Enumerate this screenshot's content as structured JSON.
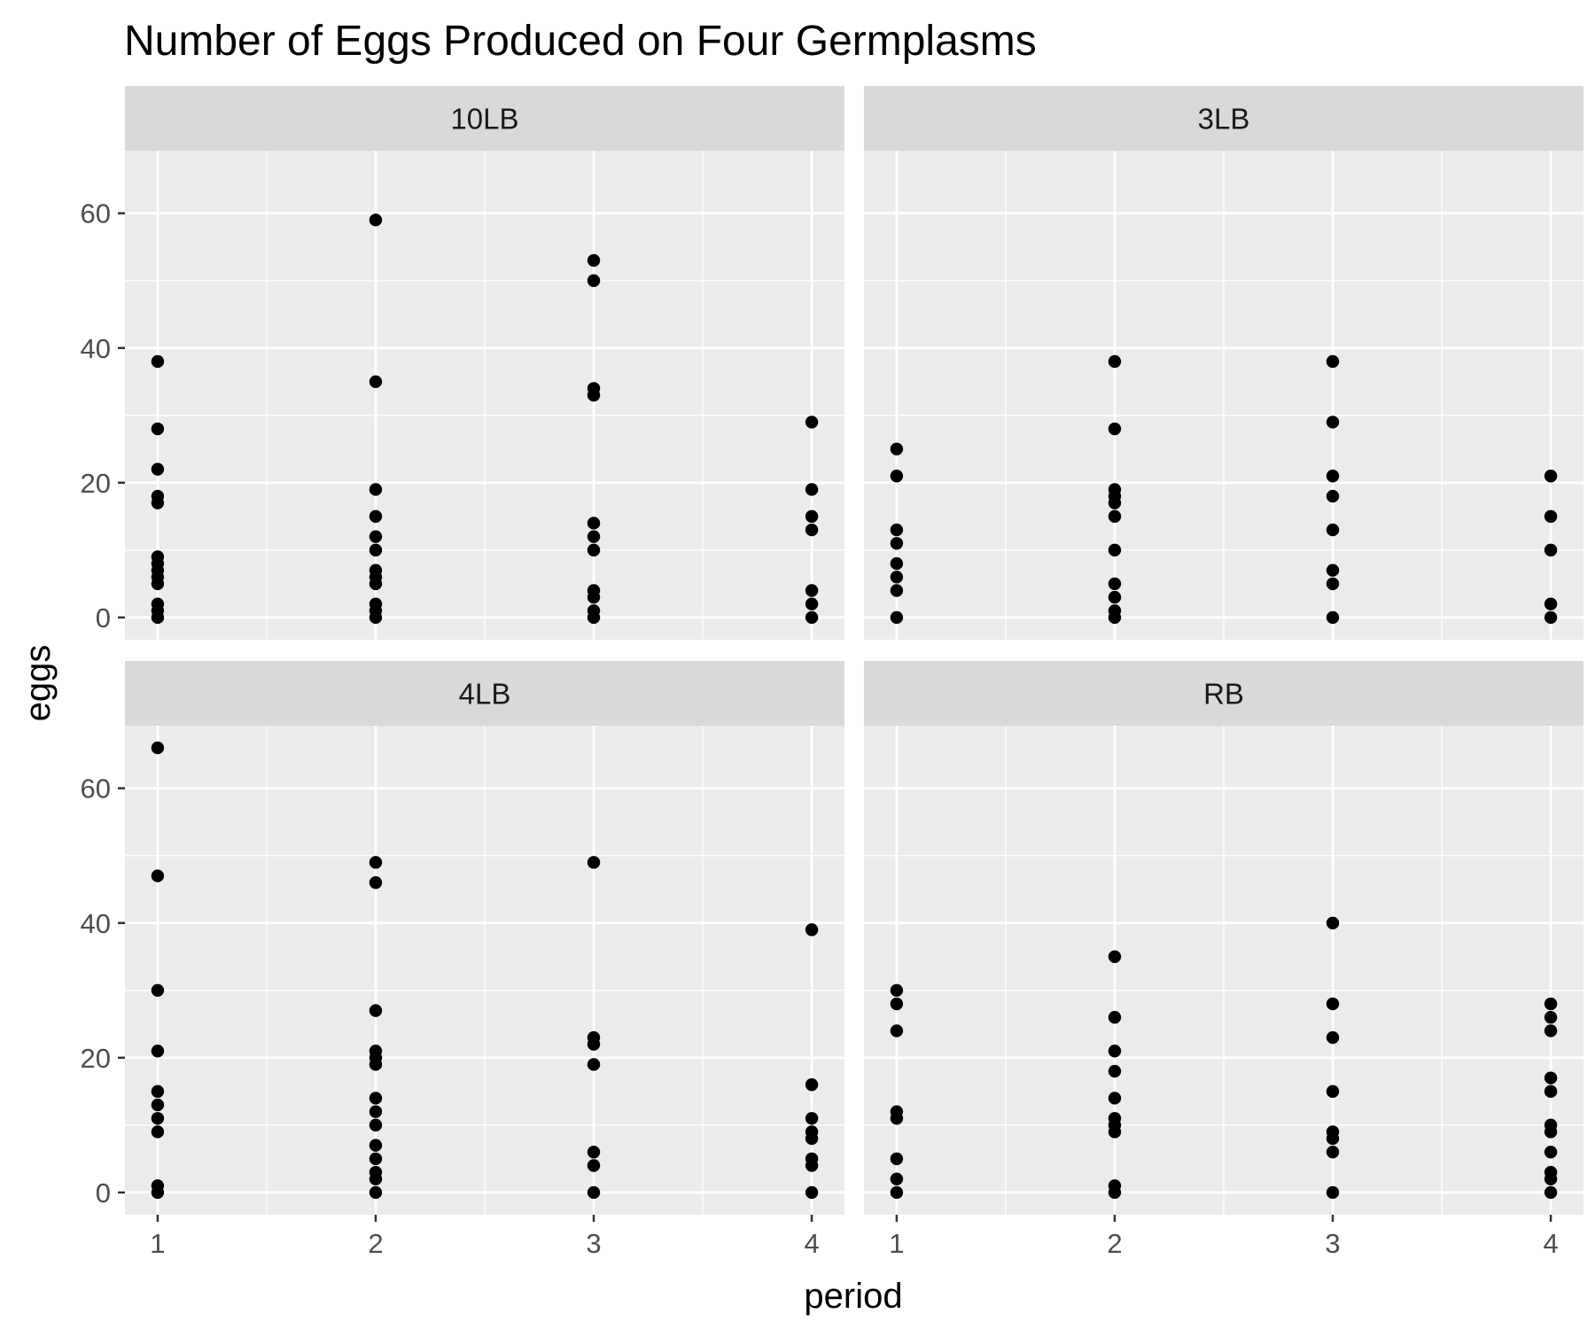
{
  "chart_data": {
    "type": "scatter",
    "title": "Number of Eggs Produced on Four Germplasms",
    "xlabel": "period",
    "ylabel": "eggs",
    "x_ticks": [
      1,
      2,
      3,
      4
    ],
    "y_ticks": [
      0,
      20,
      40,
      60
    ],
    "xlim": [
      0.85,
      4.15
    ],
    "ylim": [
      -3.3,
      69.3
    ],
    "grid": true,
    "legend": "none",
    "point_color": "#000000",
    "panel_background": "#ebebeb",
    "strip_background": "#d9d9d9",
    "panels": [
      {
        "name": "10LB",
        "points": [
          [
            1,
            38
          ],
          [
            1,
            28
          ],
          [
            1,
            22
          ],
          [
            1,
            18
          ],
          [
            1,
            17
          ],
          [
            1,
            9
          ],
          [
            1,
            8
          ],
          [
            1,
            7
          ],
          [
            1,
            6
          ],
          [
            1,
            5
          ],
          [
            1,
            2
          ],
          [
            1,
            1
          ],
          [
            1,
            0
          ],
          [
            2,
            59
          ],
          [
            2,
            35
          ],
          [
            2,
            19
          ],
          [
            2,
            15
          ],
          [
            2,
            12
          ],
          [
            2,
            10
          ],
          [
            2,
            7
          ],
          [
            2,
            6
          ],
          [
            2,
            5
          ],
          [
            2,
            2
          ],
          [
            2,
            1
          ],
          [
            2,
            0
          ],
          [
            3,
            53
          ],
          [
            3,
            50
          ],
          [
            3,
            34
          ],
          [
            3,
            33
          ],
          [
            3,
            14
          ],
          [
            3,
            12
          ],
          [
            3,
            10
          ],
          [
            3,
            4
          ],
          [
            3,
            3
          ],
          [
            3,
            1
          ],
          [
            3,
            0
          ],
          [
            4,
            29
          ],
          [
            4,
            19
          ],
          [
            4,
            15
          ],
          [
            4,
            13
          ],
          [
            4,
            4
          ],
          [
            4,
            2
          ],
          [
            4,
            0
          ]
        ]
      },
      {
        "name": "3LB",
        "points": [
          [
            1,
            25
          ],
          [
            1,
            21
          ],
          [
            1,
            13
          ],
          [
            1,
            11
          ],
          [
            1,
            8
          ],
          [
            1,
            6
          ],
          [
            1,
            4
          ],
          [
            1,
            0
          ],
          [
            2,
            38
          ],
          [
            2,
            28
          ],
          [
            2,
            19
          ],
          [
            2,
            18
          ],
          [
            2,
            17
          ],
          [
            2,
            15
          ],
          [
            2,
            10
          ],
          [
            2,
            5
          ],
          [
            2,
            3
          ],
          [
            2,
            1
          ],
          [
            2,
            0
          ],
          [
            3,
            38
          ],
          [
            3,
            29
          ],
          [
            3,
            21
          ],
          [
            3,
            18
          ],
          [
            3,
            13
          ],
          [
            3,
            7
          ],
          [
            3,
            5
          ],
          [
            3,
            0
          ],
          [
            4,
            21
          ],
          [
            4,
            15
          ],
          [
            4,
            10
          ],
          [
            4,
            2
          ],
          [
            4,
            0
          ]
        ]
      },
      {
        "name": "4LB",
        "points": [
          [
            1,
            66
          ],
          [
            1,
            47
          ],
          [
            1,
            30
          ],
          [
            1,
            21
          ],
          [
            1,
            15
          ],
          [
            1,
            13
          ],
          [
            1,
            11
          ],
          [
            1,
            9
          ],
          [
            1,
            1
          ],
          [
            1,
            0
          ],
          [
            2,
            49
          ],
          [
            2,
            46
          ],
          [
            2,
            27
          ],
          [
            2,
            21
          ],
          [
            2,
            20
          ],
          [
            2,
            19
          ],
          [
            2,
            14
          ],
          [
            2,
            12
          ],
          [
            2,
            10
          ],
          [
            2,
            7
          ],
          [
            2,
            5
          ],
          [
            2,
            3
          ],
          [
            2,
            2
          ],
          [
            2,
            0
          ],
          [
            3,
            49
          ],
          [
            3,
            23
          ],
          [
            3,
            22
          ],
          [
            3,
            19
          ],
          [
            3,
            6
          ],
          [
            3,
            4
          ],
          [
            3,
            0
          ],
          [
            4,
            39
          ],
          [
            4,
            16
          ],
          [
            4,
            11
          ],
          [
            4,
            9
          ],
          [
            4,
            8
          ],
          [
            4,
            5
          ],
          [
            4,
            4
          ],
          [
            4,
            0
          ]
        ]
      },
      {
        "name": "RB",
        "points": [
          [
            1,
            30
          ],
          [
            1,
            28
          ],
          [
            1,
            24
          ],
          [
            1,
            12
          ],
          [
            1,
            11
          ],
          [
            1,
            5
          ],
          [
            1,
            2
          ],
          [
            1,
            0
          ],
          [
            2,
            35
          ],
          [
            2,
            26
          ],
          [
            2,
            21
          ],
          [
            2,
            18
          ],
          [
            2,
            14
          ],
          [
            2,
            11
          ],
          [
            2,
            10
          ],
          [
            2,
            9
          ],
          [
            2,
            1
          ],
          [
            2,
            0
          ],
          [
            3,
            40
          ],
          [
            3,
            28
          ],
          [
            3,
            23
          ],
          [
            3,
            15
          ],
          [
            3,
            9
          ],
          [
            3,
            8
          ],
          [
            3,
            6
          ],
          [
            3,
            0
          ],
          [
            4,
            28
          ],
          [
            4,
            26
          ],
          [
            4,
            24
          ],
          [
            4,
            17
          ],
          [
            4,
            15
          ],
          [
            4,
            10
          ],
          [
            4,
            9
          ],
          [
            4,
            6
          ],
          [
            4,
            3
          ],
          [
            4,
            2
          ],
          [
            4,
            0
          ]
        ]
      }
    ]
  }
}
